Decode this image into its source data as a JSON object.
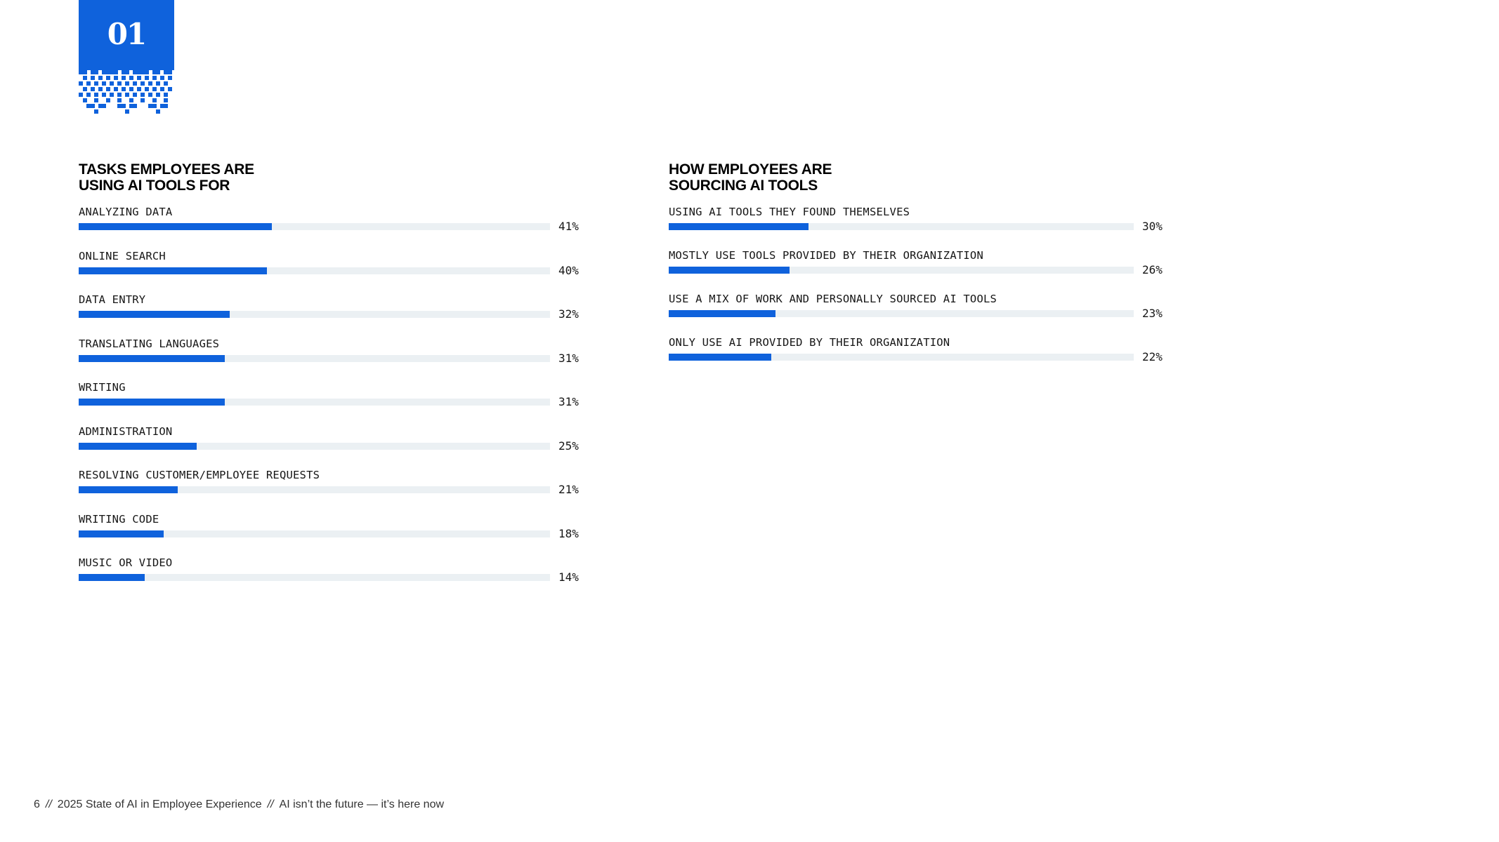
{
  "badge": {
    "number": "01"
  },
  "colors": {
    "accent": "#0f62dc",
    "track": "#ebf0f3",
    "text": "#161616"
  },
  "chart_data": [
    {
      "type": "bar",
      "orientation": "horizontal",
      "title": "TASKS EMPLOYEES ARE USING AI TOOLS FOR",
      "title_lines": [
        "TASKS EMPLOYEES ARE",
        "USING AI TOOLS FOR"
      ],
      "categories": [
        "ANALYZING DATA",
        "ONLINE SEARCH",
        "DATA ENTRY",
        "TRANSLATING LANGUAGES",
        "WRITING",
        "ADMINISTRATION",
        "RESOLVING CUSTOMER/EMPLOYEE REQUESTS",
        "WRITING CODE",
        "MUSIC OR VIDEO"
      ],
      "values": [
        41,
        40,
        32,
        31,
        31,
        25,
        21,
        18,
        14
      ],
      "labels": [
        "41%",
        "40%",
        "32%",
        "31%",
        "31%",
        "25%",
        "21%",
        "18%",
        "14%"
      ],
      "unit": "%",
      "xlim": [
        0,
        100
      ],
      "grid": false,
      "legend": null
    },
    {
      "type": "bar",
      "orientation": "horizontal",
      "title": "HOW EMPLOYEES ARE SOURCING AI TOOLS",
      "title_lines": [
        "HOW EMPLOYEES ARE",
        "SOURCING AI TOOLS"
      ],
      "categories": [
        "USING AI TOOLS THEY FOUND THEMSELVES",
        "MOSTLY USE TOOLS PROVIDED BY THEIR ORGANIZATION",
        "USE A MIX OF WORK AND PERSONALLY SOURCED AI TOOLS",
        "ONLY USE AI PROVIDED BY THEIR ORGANIZATION"
      ],
      "values": [
        30,
        26,
        23,
        22
      ],
      "labels": [
        "30%",
        "26%",
        "23%",
        "22%"
      ],
      "unit": "%",
      "xlim": [
        0,
        100
      ],
      "grid": false,
      "legend": null
    }
  ],
  "footer": {
    "page_number": "6",
    "separator": "//",
    "report_title": "2025 State of AI in Employee Experience",
    "section_title": "AI isn’t the future — it’s here now"
  }
}
